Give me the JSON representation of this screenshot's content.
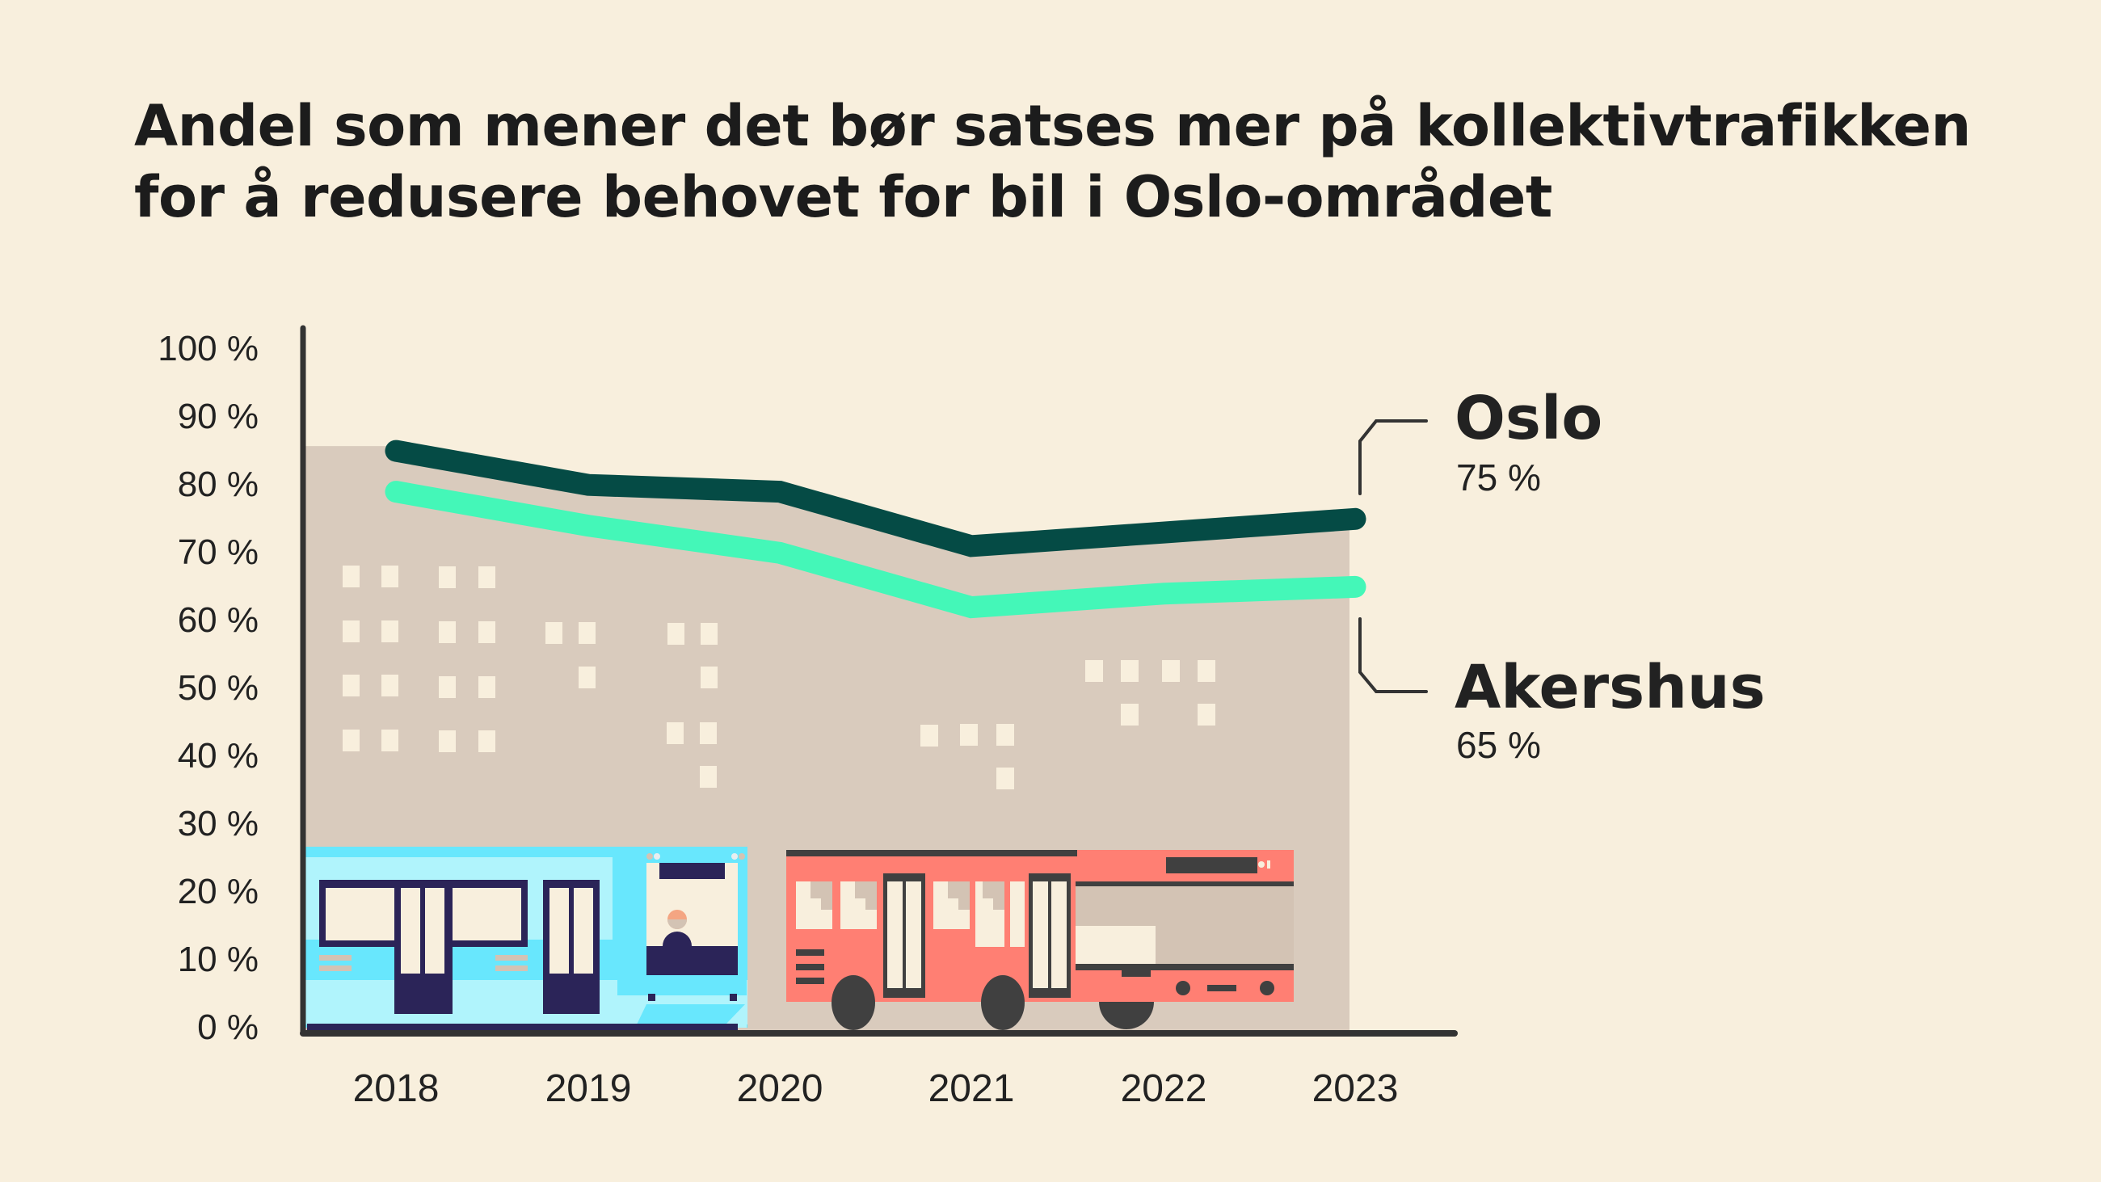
{
  "title": {
    "line1": "Andel som mener det bør satses mer på kollektivtrafikken",
    "line2": "for å redusere behovet for bil i Oslo-området"
  },
  "colors": {
    "background": "#f8efdd",
    "oslo": "#054b45",
    "akershus": "#44f7b8",
    "area_fill": "#d9cbbd",
    "axis": "#333333",
    "tram_light": "#b0f4fc",
    "tram_mid": "#68e7fd",
    "tram_dark": "#2b2458",
    "bus": "#ff7f73",
    "bus_dark": "#404040"
  },
  "legend": {
    "oslo": {
      "name": "Oslo",
      "value": "75 %"
    },
    "akershus": {
      "name": "Akershus",
      "value": "65 %"
    }
  },
  "chart_data": {
    "type": "line",
    "title": "Andel som mener det bør satses mer på kollektivtrafikken for å redusere behovet for bil i Oslo-området",
    "xlabel": "",
    "ylabel": "",
    "categories": [
      "2018",
      "2019",
      "2020",
      "2021",
      "2022",
      "2023"
    ],
    "series": [
      {
        "name": "Oslo",
        "values": [
          85,
          80,
          79,
          71,
          73,
          75
        ],
        "color": "#054b45",
        "end_label": "75 %"
      },
      {
        "name": "Akershus",
        "values": [
          79,
          74,
          70,
          62,
          64,
          65
        ],
        "color": "#44f7b8",
        "end_label": "65 %"
      }
    ],
    "y_ticks": [
      "0 %",
      "10 %",
      "20 %",
      "30 %",
      "40 %",
      "50 %",
      "60 %",
      "70 %",
      "80 %",
      "90 %",
      "100 %"
    ],
    "ylim": [
      0,
      100
    ],
    "grid": false,
    "legend_position": "right, direct labels at line ends",
    "decoration": "Illustrated city skyline area under Oslo line with tram and bus"
  }
}
